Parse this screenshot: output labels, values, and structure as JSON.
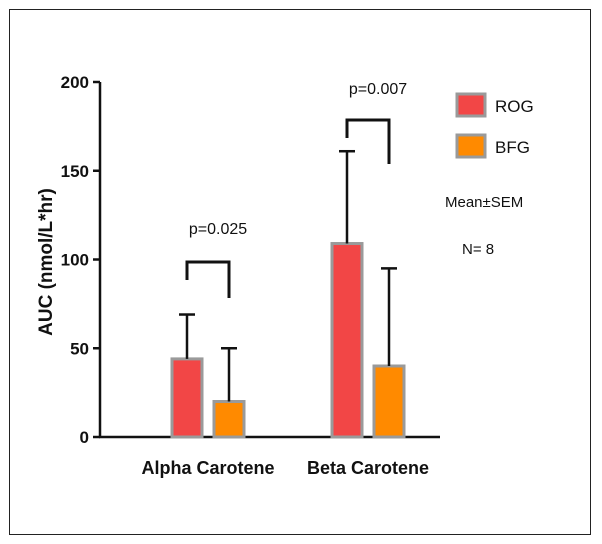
{
  "chart_data": {
    "type": "bar",
    "categories": [
      "Alpha Carotene",
      "Beta Carotene"
    ],
    "series": [
      {
        "name": "ROG",
        "values": [
          44,
          109
        ],
        "error": [
          25,
          52
        ],
        "color": "#f24646"
      },
      {
        "name": "BFG",
        "values": [
          20,
          40
        ],
        "error": [
          30,
          55
        ],
        "color": "#ff8a00"
      }
    ],
    "ylabel": "AUC (nmol/L*hr)",
    "ylim": [
      0,
      200
    ],
    "yticks": [
      "0",
      "50",
      "100",
      "150",
      "200"
    ],
    "grid": false,
    "legend_position": "top-right",
    "annotations": [
      {
        "category": "Alpha Carotene",
        "text": "p=0.025"
      },
      {
        "category": "Beta Carotene",
        "text": "p=0.007"
      }
    ],
    "notes": [
      "Mean±SEM",
      "N= 8"
    ],
    "bar_border_color": "#9a9a9a"
  }
}
